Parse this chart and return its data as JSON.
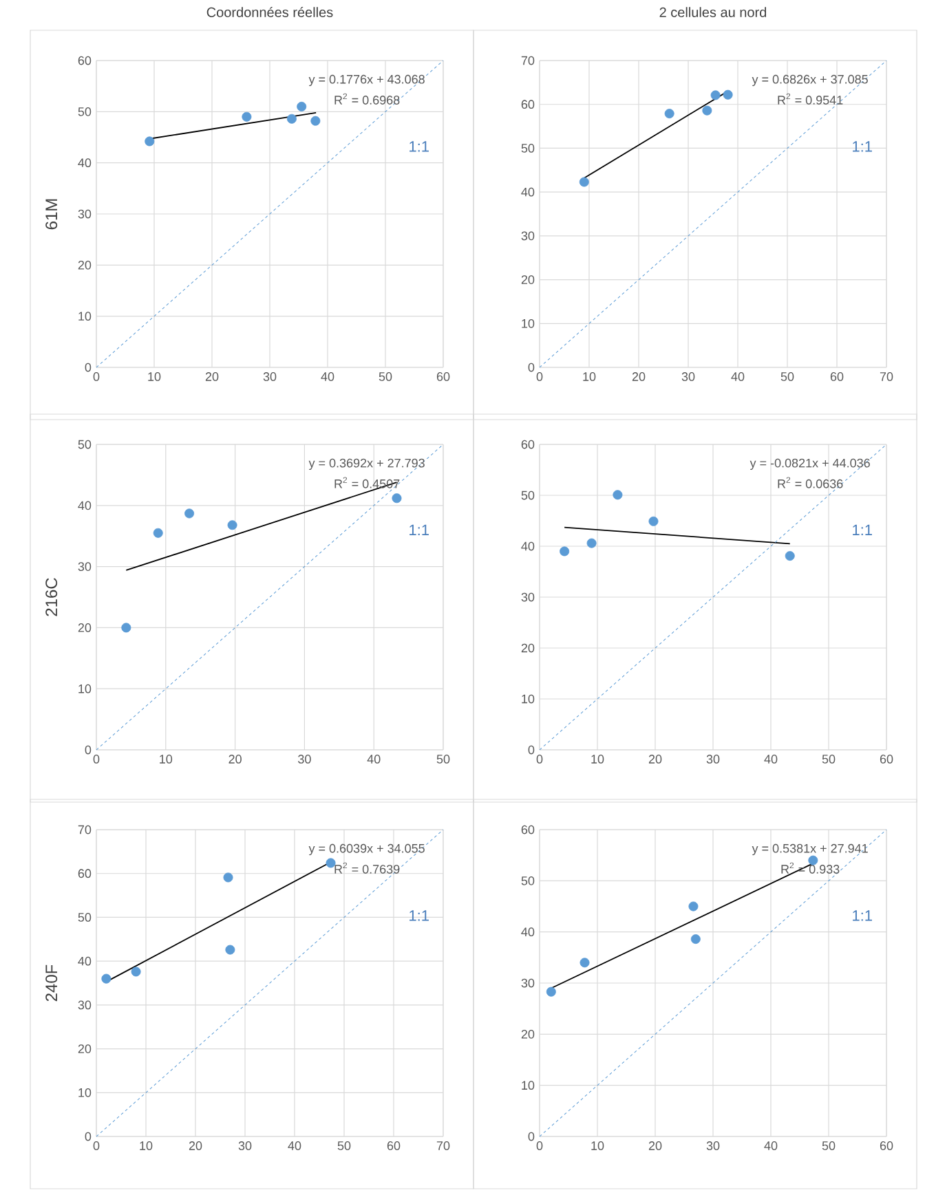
{
  "chart_data": [
    {
      "type": "scatter",
      "title": "Coordonnées réelles",
      "ylabel": "61M",
      "xlim": [
        0,
        60
      ],
      "ylim": [
        0,
        60
      ],
      "xticks": [
        0,
        10,
        20,
        30,
        40,
        50,
        60
      ],
      "yticks": [
        0,
        10,
        20,
        30,
        40,
        50,
        60
      ],
      "grid": true,
      "series": [
        {
          "marker": "circle",
          "color": "#5b9bd5",
          "x": [
            9.2,
            26,
            33.8,
            35.5,
            37.9
          ],
          "values": [
            44.2,
            49,
            48.6,
            51,
            48.2
          ]
        },
        {
          "type": "line",
          "color": "#000000",
          "x": [
            9.2,
            38
          ],
          "values": [
            44.7,
            49.8
          ]
        },
        {
          "type": "line",
          "line_style": "dashed",
          "color": "#5b9bd5",
          "x": [
            0,
            60
          ],
          "values": [
            0,
            60
          ]
        }
      ],
      "annotations": [
        "y = 0.1776x + 43.068",
        "R$^{2}$ = 0.6968",
        "1:1"
      ]
    },
    {
      "type": "scatter",
      "title": "2 cellules au nord",
      "xlim": [
        0,
        70
      ],
      "ylim": [
        0,
        70
      ],
      "xticks": [
        0,
        10,
        20,
        30,
        40,
        50,
        60,
        70
      ],
      "yticks": [
        0,
        10,
        20,
        30,
        40,
        50,
        60,
        70
      ],
      "grid": true,
      "series": [
        {
          "marker": "circle",
          "color": "#5b9bd5",
          "x": [
            9,
            26.2,
            33.8,
            35.5,
            38
          ],
          "values": [
            42.3,
            57.9,
            58.6,
            62.1,
            62.2
          ]
        },
        {
          "type": "line",
          "color": "#000000",
          "x": [
            9,
            38
          ],
          "values": [
            43.2,
            63
          ]
        },
        {
          "type": "line",
          "line_style": "dashed",
          "color": "#5b9bd5",
          "x": [
            0,
            70
          ],
          "values": [
            0,
            70
          ]
        }
      ],
      "annotations": [
        "y = 0.6826x + 37.085",
        "R$^{2}$ = 0.9541",
        "1:1"
      ]
    },
    {
      "type": "scatter",
      "ylabel": "216C",
      "xlim": [
        0,
        50
      ],
      "ylim": [
        0,
        50
      ],
      "xticks": [
        0,
        10,
        20,
        30,
        40,
        50
      ],
      "yticks": [
        0,
        10,
        20,
        30,
        40,
        50
      ],
      "grid": true,
      "series": [
        {
          "marker": "circle",
          "color": "#5b9bd5",
          "x": [
            4.3,
            8.9,
            13.4,
            19.6,
            43.3
          ],
          "values": [
            20,
            35.5,
            38.7,
            36.8,
            41.2
          ]
        },
        {
          "type": "line",
          "color": "#000000",
          "x": [
            4.3,
            43.3
          ],
          "values": [
            29.4,
            43.8
          ]
        },
        {
          "type": "line",
          "line_style": "dashed",
          "color": "#5b9bd5",
          "x": [
            0,
            50
          ],
          "values": [
            0,
            50
          ]
        }
      ],
      "annotations": [
        "y = 0.3692x + 27.793",
        "R$^{2}$ = 0.4507",
        "1:1"
      ]
    },
    {
      "type": "scatter",
      "xlim": [
        0,
        60
      ],
      "ylim": [
        0,
        60
      ],
      "xticks": [
        0,
        10,
        20,
        30,
        40,
        50,
        60
      ],
      "yticks": [
        0,
        10,
        20,
        30,
        40,
        50,
        60
      ],
      "grid": true,
      "series": [
        {
          "marker": "circle",
          "color": "#5b9bd5",
          "x": [
            4.3,
            9,
            13.5,
            19.7,
            43.3
          ],
          "values": [
            39,
            40.6,
            50.1,
            44.9,
            38.1
          ]
        },
        {
          "type": "line",
          "color": "#000000",
          "x": [
            4.3,
            43.3
          ],
          "values": [
            43.7,
            40.5
          ]
        },
        {
          "type": "line",
          "line_style": "dashed",
          "color": "#5b9bd5",
          "x": [
            0,
            60
          ],
          "values": [
            0,
            60
          ]
        }
      ],
      "annotations": [
        "y = -0.0821x + 44.036",
        "R$^{2}$ = 0.0636",
        "1:1"
      ]
    },
    {
      "type": "scatter",
      "ylabel": "240F",
      "xlim": [
        0,
        70
      ],
      "ylim": [
        0,
        70
      ],
      "xticks": [
        0,
        10,
        20,
        30,
        40,
        50,
        60,
        70
      ],
      "yticks": [
        0,
        10,
        20,
        30,
        40,
        50,
        60,
        70
      ],
      "grid": true,
      "series": [
        {
          "marker": "circle",
          "color": "#5b9bd5",
          "x": [
            2,
            8,
            26.6,
            27,
            47.3
          ],
          "values": [
            36,
            37.6,
            59.1,
            42.6,
            62.4
          ]
        },
        {
          "type": "line",
          "color": "#000000",
          "x": [
            2,
            47.3
          ],
          "values": [
            35.3,
            62.6
          ]
        },
        {
          "type": "line",
          "line_style": "dashed",
          "color": "#5b9bd5",
          "x": [
            0,
            70
          ],
          "values": [
            0,
            70
          ]
        }
      ],
      "annotations": [
        "y = 0.6039x + 34.055",
        "R$^{2}$ = 0.7639",
        "1:1"
      ]
    },
    {
      "type": "scatter",
      "xlim": [
        0,
        60
      ],
      "ylim": [
        0,
        60
      ],
      "xticks": [
        0,
        10,
        20,
        30,
        40,
        50,
        60
      ],
      "yticks": [
        0,
        10,
        20,
        30,
        40,
        50,
        60
      ],
      "grid": true,
      "series": [
        {
          "marker": "circle",
          "color": "#5b9bd5",
          "x": [
            2,
            7.8,
            26.6,
            27,
            47.3
          ],
          "values": [
            28.3,
            34,
            45,
            38.6,
            54
          ]
        },
        {
          "type": "line",
          "color": "#000000",
          "x": [
            2,
            47.3
          ],
          "values": [
            29,
            53.4
          ]
        },
        {
          "type": "line",
          "line_style": "dashed",
          "color": "#5b9bd5",
          "x": [
            0,
            60
          ],
          "values": [
            0,
            60
          ]
        }
      ],
      "annotations": [
        "y = 0.5381x + 27.941",
        "R$^{2}$ = 0.933",
        "1:1"
      ]
    }
  ]
}
